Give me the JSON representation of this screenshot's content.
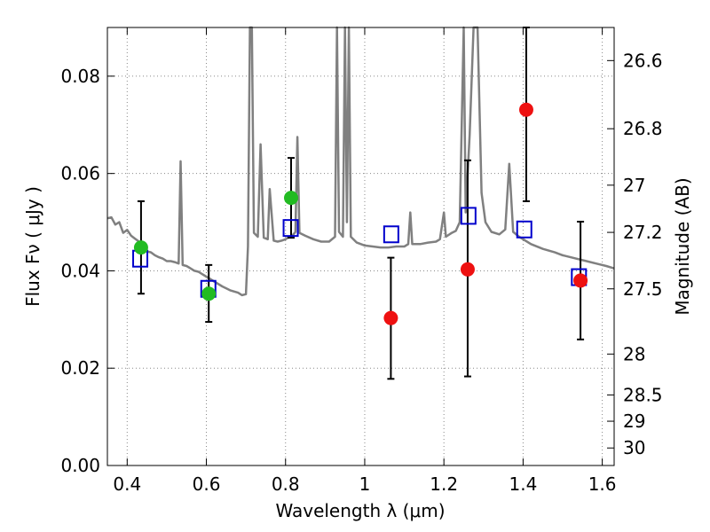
{
  "chart_data": {
    "type": "scatter",
    "xlabel": "Wavelength  λ (μm)",
    "ylabel": "Flux  Fν  ( μJy )",
    "ylabel_right": "Magnitude (AB)",
    "xlim": [
      0.35,
      1.63
    ],
    "ylim": [
      0.0,
      0.09
    ],
    "grid": true,
    "x_ticks": [
      0.4,
      0.6,
      0.8,
      1.0,
      1.2,
      1.4,
      1.6
    ],
    "x_tick_labels": [
      "0.4",
      "0.6",
      "0.8",
      "1",
      "1.2",
      "1.4",
      "1.6"
    ],
    "y_ticks": [
      0.0,
      0.02,
      0.04,
      0.06,
      0.08
    ],
    "y_tick_labels": [
      "0.00",
      "0.02",
      "0.04",
      "0.06",
      "0.08"
    ],
    "right_ticks": [
      {
        "label": "26.6",
        "flux": 0.0832
      },
      {
        "label": "26.8",
        "flux": 0.0692
      },
      {
        "label": "27",
        "flux": 0.0576
      },
      {
        "label": "27.2",
        "flux": 0.0479
      },
      {
        "label": "27.5",
        "flux": 0.0363
      },
      {
        "label": "28",
        "flux": 0.0229
      },
      {
        "label": "28.5",
        "flux": 0.0145
      },
      {
        "label": "29",
        "flux": 0.0091
      },
      {
        "label": "30",
        "flux": 0.0036
      }
    ],
    "colors": {
      "spectrum": "#808080",
      "green": "#22bb22",
      "red": "#ee1111",
      "model": "#0000cc",
      "errorbar": "#000000",
      "grid": "#888888"
    },
    "green_points": [
      {
        "x": 0.435,
        "y": 0.0448,
        "yerr_low": 0.0353,
        "yerr_high": 0.0543
      },
      {
        "x": 0.606,
        "y": 0.0353,
        "yerr_low": 0.0295,
        "yerr_high": 0.0412
      },
      {
        "x": 0.814,
        "y": 0.055,
        "yerr_low": 0.0468,
        "yerr_high": 0.0632
      }
    ],
    "red_points": [
      {
        "x": 1.066,
        "y": 0.0303,
        "yerr_low": 0.0178,
        "yerr_high": 0.0427
      },
      {
        "x": 1.26,
        "y": 0.0403,
        "yerr_low": 0.0183,
        "yerr_high": 0.0627
      },
      {
        "x": 1.408,
        "y": 0.0731,
        "yerr_low": 0.0543,
        "yerr_high": 0.09
      },
      {
        "x": 1.545,
        "y": 0.038,
        "yerr_low": 0.0259,
        "yerr_high": 0.0501
      }
    ],
    "model_points": [
      {
        "x": 0.433,
        "y": 0.0425
      },
      {
        "x": 0.605,
        "y": 0.0363
      },
      {
        "x": 0.813,
        "y": 0.0488
      },
      {
        "x": 1.067,
        "y": 0.0475
      },
      {
        "x": 1.262,
        "y": 0.0513
      },
      {
        "x": 1.403,
        "y": 0.0485
      },
      {
        "x": 1.541,
        "y": 0.0387
      }
    ],
    "spectrum": [
      [
        0.35,
        0.0508
      ],
      [
        0.36,
        0.051
      ],
      [
        0.37,
        0.0495
      ],
      [
        0.38,
        0.05
      ],
      [
        0.39,
        0.0478
      ],
      [
        0.4,
        0.0484
      ],
      [
        0.41,
        0.0472
      ],
      [
        0.42,
        0.0466
      ],
      [
        0.43,
        0.046
      ],
      [
        0.44,
        0.045
      ],
      [
        0.45,
        0.044
      ],
      [
        0.46,
        0.0438
      ],
      [
        0.47,
        0.0432
      ],
      [
        0.48,
        0.0428
      ],
      [
        0.49,
        0.0425
      ],
      [
        0.5,
        0.042
      ],
      [
        0.51,
        0.042
      ],
      [
        0.52,
        0.0418
      ],
      [
        0.53,
        0.0415
      ],
      [
        0.535,
        0.0625
      ],
      [
        0.54,
        0.0412
      ],
      [
        0.55,
        0.041
      ],
      [
        0.56,
        0.0405
      ],
      [
        0.57,
        0.04
      ],
      [
        0.58,
        0.0398
      ],
      [
        0.59,
        0.0393
      ],
      [
        0.6,
        0.0388
      ],
      [
        0.62,
        0.0378
      ],
      [
        0.64,
        0.0368
      ],
      [
        0.66,
        0.036
      ],
      [
        0.68,
        0.0355
      ],
      [
        0.69,
        0.035
      ],
      [
        0.7,
        0.0352
      ],
      [
        0.705,
        0.045
      ],
      [
        0.71,
        0.09
      ],
      [
        0.715,
        0.09
      ],
      [
        0.72,
        0.0478
      ],
      [
        0.73,
        0.047
      ],
      [
        0.737,
        0.066
      ],
      [
        0.745,
        0.0468
      ],
      [
        0.755,
        0.0465
      ],
      [
        0.76,
        0.0568
      ],
      [
        0.77,
        0.0462
      ],
      [
        0.78,
        0.046
      ],
      [
        0.79,
        0.0462
      ],
      [
        0.8,
        0.0465
      ],
      [
        0.81,
        0.047
      ],
      [
        0.82,
        0.0475
      ],
      [
        0.825,
        0.048
      ],
      [
        0.83,
        0.0675
      ],
      [
        0.835,
        0.0478
      ],
      [
        0.85,
        0.0472
      ],
      [
        0.87,
        0.0465
      ],
      [
        0.89,
        0.046
      ],
      [
        0.91,
        0.046
      ],
      [
        0.925,
        0.047
      ],
      [
        0.93,
        0.09
      ],
      [
        0.935,
        0.048
      ],
      [
        0.945,
        0.047
      ],
      [
        0.95,
        0.09
      ],
      [
        0.955,
        0.05
      ],
      [
        0.96,
        0.09
      ],
      [
        0.965,
        0.047
      ],
      [
        0.98,
        0.0458
      ],
      [
        1.0,
        0.0452
      ],
      [
        1.02,
        0.045
      ],
      [
        1.04,
        0.0448
      ],
      [
        1.06,
        0.0448
      ],
      [
        1.08,
        0.045
      ],
      [
        1.1,
        0.045
      ],
      [
        1.11,
        0.0455
      ],
      [
        1.115,
        0.052
      ],
      [
        1.12,
        0.0455
      ],
      [
        1.14,
        0.0455
      ],
      [
        1.16,
        0.0458
      ],
      [
        1.18,
        0.046
      ],
      [
        1.19,
        0.0465
      ],
      [
        1.2,
        0.052
      ],
      [
        1.205,
        0.047
      ],
      [
        1.22,
        0.0478
      ],
      [
        1.23,
        0.0482
      ],
      [
        1.24,
        0.05
      ],
      [
        1.25,
        0.09
      ],
      [
        1.255,
        0.052
      ],
      [
        1.265,
        0.068
      ],
      [
        1.275,
        0.09
      ],
      [
        1.285,
        0.09
      ],
      [
        1.295,
        0.056
      ],
      [
        1.305,
        0.05
      ],
      [
        1.32,
        0.048
      ],
      [
        1.34,
        0.0475
      ],
      [
        1.355,
        0.0485
      ],
      [
        1.365,
        0.062
      ],
      [
        1.375,
        0.048
      ],
      [
        1.39,
        0.047
      ],
      [
        1.42,
        0.0455
      ],
      [
        1.45,
        0.0445
      ],
      [
        1.48,
        0.0438
      ],
      [
        1.5,
        0.0432
      ],
      [
        1.53,
        0.0426
      ],
      [
        1.56,
        0.042
      ],
      [
        1.59,
        0.0414
      ],
      [
        1.61,
        0.041
      ],
      [
        1.63,
        0.0405
      ]
    ]
  }
}
